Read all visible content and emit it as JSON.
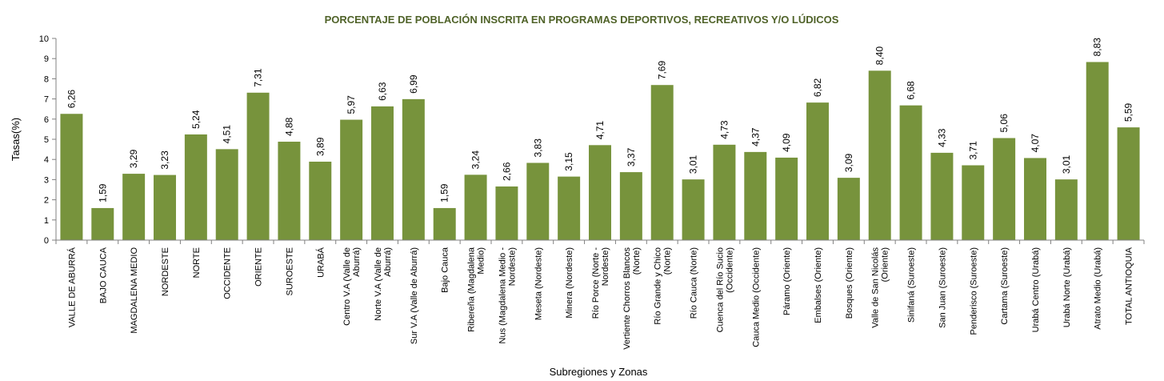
{
  "chart_data": {
    "type": "bar",
    "title": "PORCENTAJE DE POBLACIÓN INSCRITA EN PROGRAMAS DEPORTIVOS, RECREATIVOS Y/O LÚDICOS",
    "xlabel": "Subregiones y Zonas",
    "ylabel": "Tasas(%)",
    "ylim": [
      0,
      10
    ],
    "yticks": [
      "0",
      "1",
      "2",
      "3",
      "4",
      "5",
      "6",
      "7",
      "8",
      "9",
      "10"
    ],
    "bar_color": "#77933c",
    "grid": false,
    "legend": "none",
    "categories": [
      [
        "VALLE DE ABURRÁ"
      ],
      [
        "BAJO CAUCA"
      ],
      [
        "MAGDALENA MEDIO"
      ],
      [
        "NORDESTE"
      ],
      [
        "NORTE"
      ],
      [
        "OCCIDENTE"
      ],
      [
        "ORIENTE"
      ],
      [
        "SUROESTE"
      ],
      [
        "URABÁ"
      ],
      [
        "Centro V.A (Valle de",
        "Aburrá)"
      ],
      [
        "Norte V.A (Valle de",
        "Aburrá)"
      ],
      [
        "Sur V.A (Valle de Aburrá)"
      ],
      [
        "Bajo Cauca"
      ],
      [
        "Ribereña (Magdalena",
        "Medio)"
      ],
      [
        "Nus (Magdalena Medio -",
        "Nordeste)"
      ],
      [
        "Meseta (Nordeste)"
      ],
      [
        "Minera (Nordeste)"
      ],
      [
        "Río Porce (Norte -",
        "Nordeste)"
      ],
      [
        "Vertiente Chorros Blancos",
        "(Norte)"
      ],
      [
        "Río Grande y Chico",
        "(Norte)"
      ],
      [
        "Río Cauca (Norte)"
      ],
      [
        "Cuenca del Río Sucio",
        "(Occidente)"
      ],
      [
        "Cauca Medio (Occidente)"
      ],
      [
        "Páramo (Oriente)"
      ],
      [
        "Embalses (Oriente)"
      ],
      [
        "Bosques (Oriente)"
      ],
      [
        "Valle de San Nicolás",
        "(Oriente)"
      ],
      [
        "Sinifaná (Suroeste)"
      ],
      [
        "San Juan (Suroeste)"
      ],
      [
        "Penderisco (Suroeste)"
      ],
      [
        "Cartama (Suroeste)"
      ],
      [
        "Urabá Centro (Urabá)"
      ],
      [
        "Urabá Norte (Urabá)"
      ],
      [
        "Atrato Medio (Urabá)"
      ],
      [
        "TOTAL ANTIOQUIA"
      ]
    ],
    "values": [
      6.26,
      1.59,
      3.29,
      3.23,
      5.24,
      4.51,
      7.31,
      4.88,
      3.89,
      5.97,
      6.63,
      6.99,
      1.59,
      3.24,
      2.66,
      3.83,
      3.15,
      4.71,
      3.37,
      7.69,
      3.01,
      4.73,
      4.37,
      4.09,
      6.82,
      3.09,
      8.4,
      6.68,
      4.33,
      3.71,
      5.06,
      4.07,
      3.01,
      8.83,
      5.59
    ],
    "value_labels": [
      "6,26",
      "1,59",
      "3,29",
      "3,23",
      "5,24",
      "4,51",
      "7,31",
      "4,88",
      "3,89",
      "5,97",
      "6,63",
      "6,99",
      "1,59",
      "3,24",
      "2,66",
      "3,83",
      "3,15",
      "4,71",
      "3,37",
      "7,69",
      "3,01",
      "4,73",
      "4,37",
      "4,09",
      "6,82",
      "3,09",
      "8,40",
      "6,68",
      "4,33",
      "3,71",
      "5,06",
      "4,07",
      "3,01",
      "8,83",
      "5,59"
    ]
  }
}
